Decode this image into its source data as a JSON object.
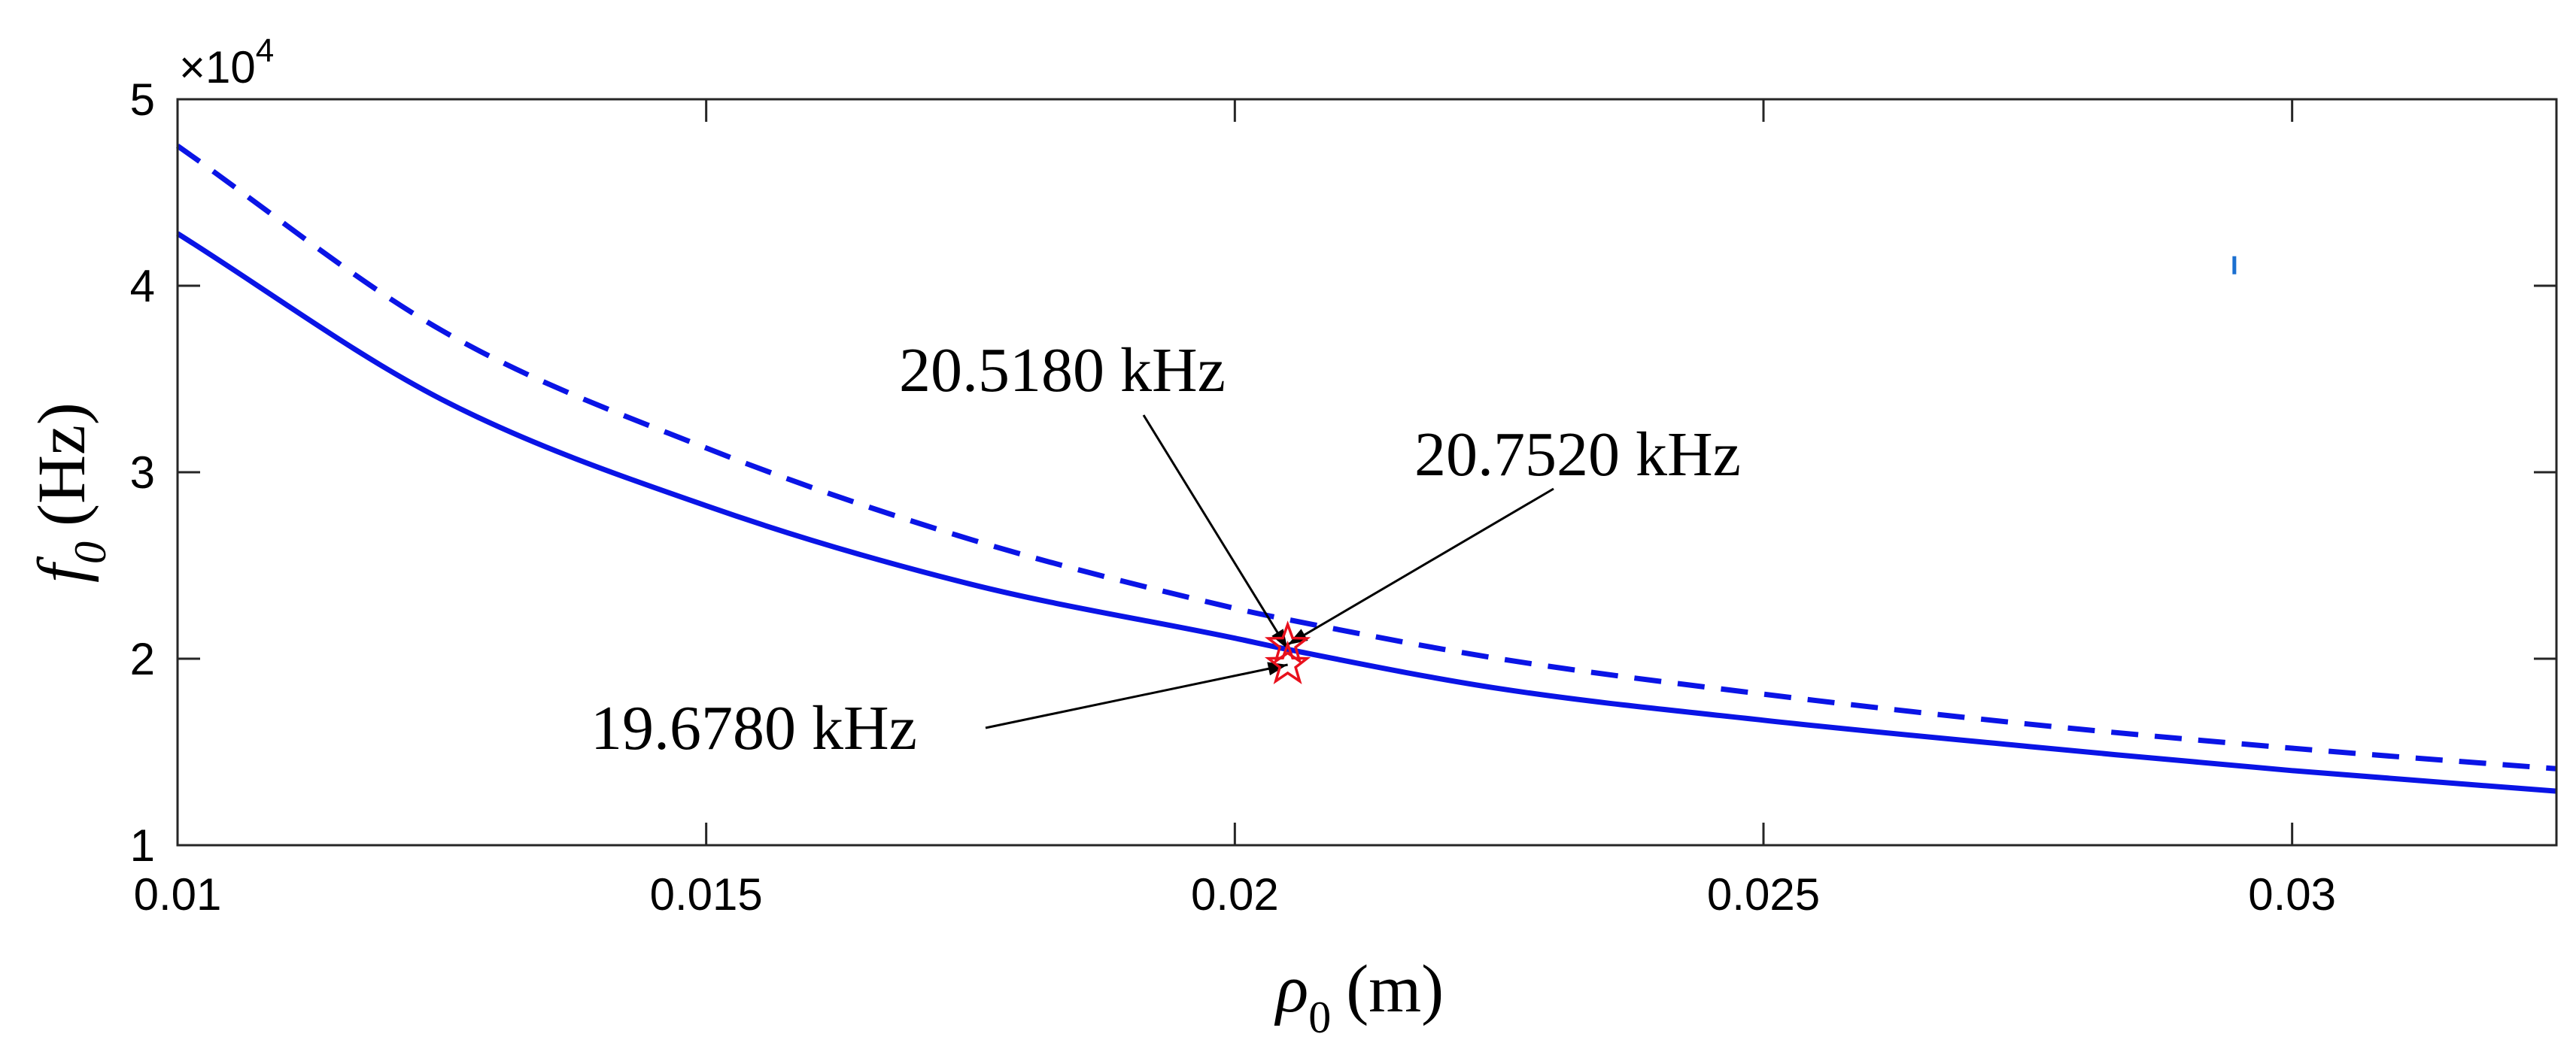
{
  "chart_data": {
    "type": "line",
    "title": "",
    "xlabel": {
      "symbol": "ρ",
      "sub": "0",
      "unit": "(m)"
    },
    "ylabel": {
      "symbol": "f",
      "sub": "0",
      "unit": "(Hz)"
    },
    "xlim": [
      0.01,
      0.0325
    ],
    "ylim": [
      10000,
      50000
    ],
    "x_ticks": [
      0.01,
      0.015,
      0.02,
      0.025,
      0.03
    ],
    "x_tick_labels": [
      "0.01",
      "0.015",
      "0.02",
      "0.025",
      "0.03"
    ],
    "y_ticks": [
      10000,
      20000,
      30000,
      40000,
      50000
    ],
    "y_tick_labels": [
      "1",
      "2",
      "3",
      "4",
      "5"
    ],
    "y_exponent_label": "×10",
    "y_exponent_power": "4",
    "grid": false,
    "series": [
      {
        "name": "dashed",
        "style": "dashed",
        "color": "#0a14e6",
        "x": [
          0.01,
          0.0125,
          0.015,
          0.0175,
          0.02,
          0.0205,
          0.0225,
          0.025,
          0.0275,
          0.03,
          0.0325
        ],
        "y": [
          47500,
          37600,
          31300,
          26400,
          22700,
          22100,
          20000,
          18100,
          16500,
          15200,
          14100
        ]
      },
      {
        "name": "solid",
        "style": "solid",
        "color": "#0a14e6",
        "x": [
          0.01,
          0.0125,
          0.015,
          0.0175,
          0.02,
          0.0205,
          0.0225,
          0.025,
          0.0275,
          0.03,
          0.0325
        ],
        "y": [
          42800,
          33900,
          28200,
          24000,
          21100,
          20500,
          18400,
          16700,
          15300,
          14000,
          12900
        ]
      }
    ],
    "markers": [
      {
        "x": 0.0205,
        "y": 20752,
        "shape": "star",
        "color": "#e8101c"
      },
      {
        "x": 0.0205,
        "y": 19678,
        "shape": "star",
        "color": "#e8101c"
      }
    ],
    "annotations": [
      {
        "text": "20.5180 kHz",
        "x": 0.0205,
        "y": 20518
      },
      {
        "text": "20.7520 kHz",
        "x": 0.0205,
        "y": 20752
      },
      {
        "text": "19.6780 kHz",
        "x": 0.0205,
        "y": 19678
      }
    ],
    "stray_mark": {
      "x": 0.02945,
      "y": 41100,
      "color": "#1a6fd0"
    }
  }
}
